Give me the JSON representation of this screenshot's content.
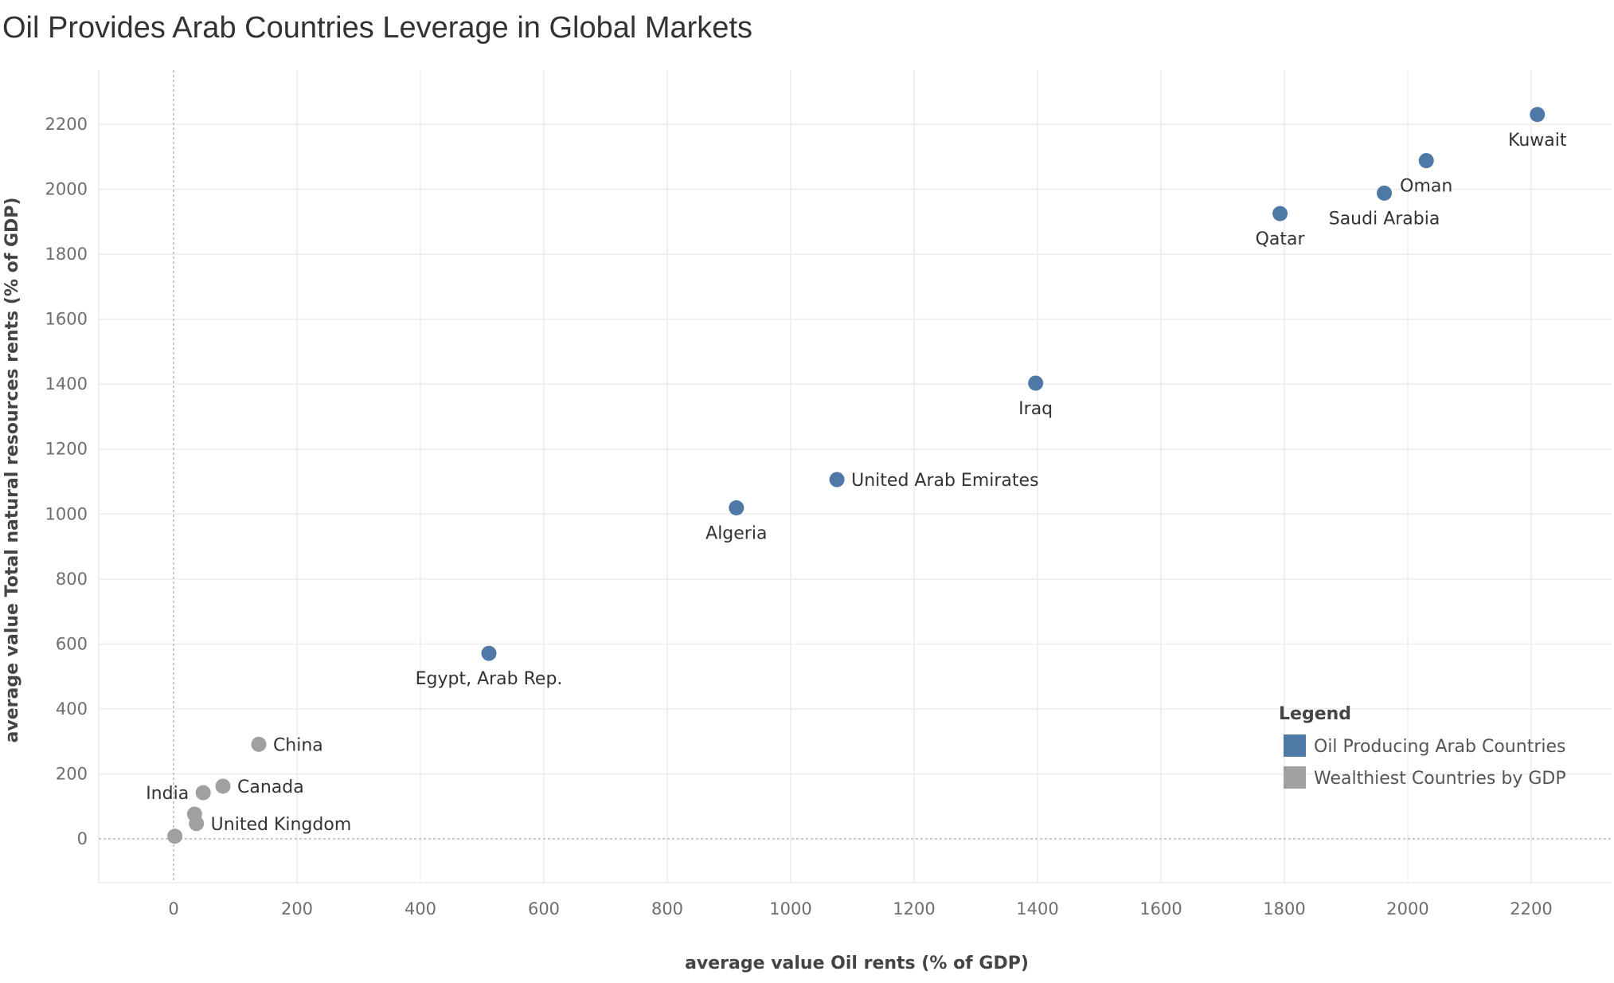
{
  "title": "Oil Provides Arab Countries Leverage in Global Markets",
  "chart_data": {
    "type": "scatter",
    "title": "Oil Provides Arab Countries Leverage in Global Markets",
    "xlabel": "average value Oil rents (% of GDP)",
    "ylabel": "average value Total natural resources rents (% of GDP)",
    "xlim": [
      -120,
      2330
    ],
    "ylim": [
      -140,
      2330
    ],
    "x_ticks": [
      0,
      200,
      400,
      600,
      800,
      1000,
      1200,
      1400,
      1600,
      1800,
      2000,
      2200
    ],
    "y_ticks": [
      0,
      200,
      400,
      600,
      800,
      1000,
      1200,
      1400,
      1600,
      1800,
      2000,
      2200
    ],
    "grid": true,
    "legend": {
      "title": "Legend",
      "placement": "bottom-right",
      "entries": [
        {
          "label": "Oil Producing Arab Countries",
          "color": "#4e79a7"
        },
        {
          "label": "Wealthiest Countries by GDP",
          "color": "#a0a0a0"
        }
      ]
    },
    "series": [
      {
        "name": "Oil Producing Arab Countries",
        "color": "#4e79a7",
        "points": [
          {
            "label": "Kuwait",
            "x": 2210,
            "y": 2230,
            "label_pos": "below"
          },
          {
            "label": "Oman",
            "x": 2030,
            "y": 2088,
            "label_pos": "below"
          },
          {
            "label": "Saudi Arabia",
            "x": 1962,
            "y": 1988,
            "label_pos": "below"
          },
          {
            "label": "Qatar",
            "x": 1793,
            "y": 1925,
            "label_pos": "below"
          },
          {
            "label": "Iraq",
            "x": 1397,
            "y": 1403,
            "label_pos": "below"
          },
          {
            "label": "United Arab Emirates",
            "x": 1075,
            "y": 1106,
            "label_pos": "right"
          },
          {
            "label": "Algeria",
            "x": 912,
            "y": 1019,
            "label_pos": "below"
          },
          {
            "label": "Egypt, Arab Rep.",
            "x": 511,
            "y": 571,
            "label_pos": "below"
          }
        ]
      },
      {
        "name": "Wealthiest Countries by GDP",
        "color": "#a0a0a0",
        "points": [
          {
            "label": "China",
            "x": 138,
            "y": 291,
            "label_pos": "right"
          },
          {
            "label": "Canada",
            "x": 80,
            "y": 162,
            "label_pos": "right"
          },
          {
            "label": "India",
            "x": 48,
            "y": 142,
            "label_pos": "left"
          },
          {
            "label": "",
            "x": 34,
            "y": 76,
            "label_pos": "none"
          },
          {
            "label": "United Kingdom",
            "x": 37,
            "y": 47,
            "label_pos": "right"
          },
          {
            "label": "",
            "x": 2,
            "y": 8,
            "label_pos": "none"
          }
        ]
      }
    ]
  }
}
